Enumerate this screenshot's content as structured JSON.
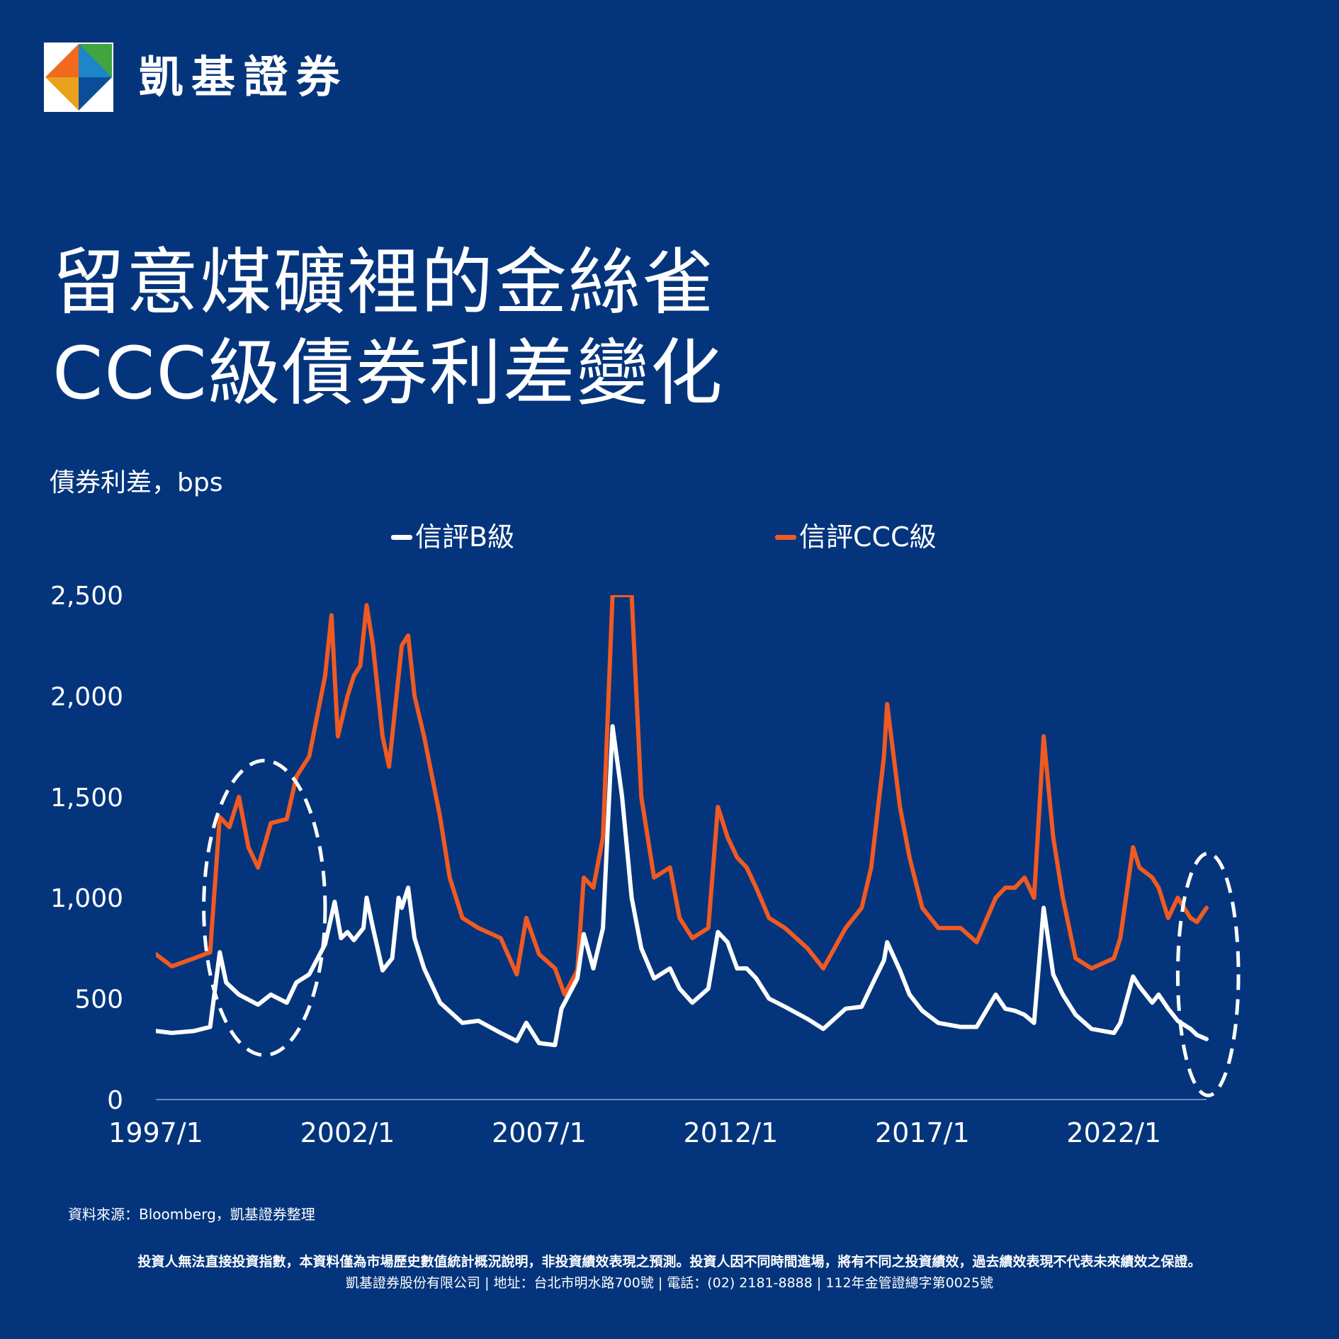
{
  "brand": {
    "name": "凱基證券"
  },
  "title": {
    "line1": "留意煤礦裡的金絲雀",
    "line2": "CCC級債券利差變化"
  },
  "chart_data": {
    "type": "line",
    "title": "留意煤礦裡的金絲雀 CCC級債券利差變化",
    "ylabel": "債券利差，bps",
    "xlabel": "",
    "ylim": [
      0,
      2500
    ],
    "y_ticks": [
      0,
      500,
      1000,
      1500,
      2000,
      2500
    ],
    "y_tick_labels": [
      "0",
      "500",
      "1,000",
      "1,500",
      "2,000",
      "2,500"
    ],
    "x_range": [
      "1997-01",
      "2024-06"
    ],
    "x_ticks": [
      "1997/1",
      "2002/1",
      "2007/1",
      "2012/1",
      "2017/1",
      "2022/1"
    ],
    "grid": false,
    "legend_position": "top",
    "series": [
      {
        "name": "信評B級",
        "color": "#ffffff",
        "points": [
          [
            "1997-01",
            340
          ],
          [
            "1997-06",
            330
          ],
          [
            "1998-01",
            340
          ],
          [
            "1998-06",
            360
          ],
          [
            "1998-09",
            730
          ],
          [
            "1998-11",
            580
          ],
          [
            "1999-03",
            520
          ],
          [
            "1999-09",
            470
          ],
          [
            "2000-01",
            520
          ],
          [
            "2000-06",
            480
          ],
          [
            "2000-09",
            580
          ],
          [
            "2001-01",
            620
          ],
          [
            "2001-06",
            770
          ],
          [
            "2001-09",
            980
          ],
          [
            "2001-11",
            800
          ],
          [
            "2002-01",
            830
          ],
          [
            "2002-03",
            790
          ],
          [
            "2002-06",
            850
          ],
          [
            "2002-07",
            1000
          ],
          [
            "2002-09",
            850
          ],
          [
            "2002-12",
            640
          ],
          [
            "2003-03",
            700
          ],
          [
            "2003-05",
            1000
          ],
          [
            "2003-06",
            950
          ],
          [
            "2003-08",
            1050
          ],
          [
            "2003-10",
            800
          ],
          [
            "2004-01",
            650
          ],
          [
            "2004-06",
            480
          ],
          [
            "2005-01",
            380
          ],
          [
            "2005-06",
            390
          ],
          [
            "2006-01",
            330
          ],
          [
            "2006-06",
            290
          ],
          [
            "2006-09",
            380
          ],
          [
            "2007-01",
            280
          ],
          [
            "2007-06",
            270
          ],
          [
            "2007-08",
            450
          ],
          [
            "2008-01",
            600
          ],
          [
            "2008-03",
            820
          ],
          [
            "2008-06",
            650
          ],
          [
            "2008-09",
            850
          ],
          [
            "2008-12",
            1850
          ],
          [
            "2009-03",
            1500
          ],
          [
            "2009-06",
            1000
          ],
          [
            "2009-09",
            750
          ],
          [
            "2010-01",
            600
          ],
          [
            "2010-06",
            650
          ],
          [
            "2010-09",
            550
          ],
          [
            "2011-01",
            480
          ],
          [
            "2011-06",
            550
          ],
          [
            "2011-09",
            830
          ],
          [
            "2011-12",
            780
          ],
          [
            "2012-03",
            650
          ],
          [
            "2012-06",
            650
          ],
          [
            "2012-09",
            600
          ],
          [
            "2013-01",
            500
          ],
          [
            "2013-06",
            460
          ],
          [
            "2014-01",
            400
          ],
          [
            "2014-06",
            350
          ],
          [
            "2015-01",
            450
          ],
          [
            "2015-06",
            460
          ],
          [
            "2015-09",
            560
          ],
          [
            "2016-01",
            690
          ],
          [
            "2016-02",
            780
          ],
          [
            "2016-06",
            640
          ],
          [
            "2016-09",
            520
          ],
          [
            "2017-01",
            440
          ],
          [
            "2017-06",
            380
          ],
          [
            "2018-01",
            360
          ],
          [
            "2018-06",
            360
          ],
          [
            "2018-12",
            520
          ],
          [
            "2019-03",
            450
          ],
          [
            "2019-06",
            440
          ],
          [
            "2019-09",
            420
          ],
          [
            "2019-12",
            380
          ],
          [
            "2020-03",
            950
          ],
          [
            "2020-06",
            620
          ],
          [
            "2020-09",
            520
          ],
          [
            "2021-01",
            420
          ],
          [
            "2021-06",
            350
          ],
          [
            "2022-01",
            330
          ],
          [
            "2022-03",
            380
          ],
          [
            "2022-07",
            610
          ],
          [
            "2022-09",
            560
          ],
          [
            "2023-01",
            480
          ],
          [
            "2023-03",
            520
          ],
          [
            "2023-06",
            450
          ],
          [
            "2023-09",
            390
          ],
          [
            "2024-01",
            350
          ],
          [
            "2024-03",
            320
          ],
          [
            "2024-06",
            300
          ]
        ]
      },
      {
        "name": "信評CCC級",
        "color": "#f05a22",
        "points": [
          [
            "1997-01",
            720
          ],
          [
            "1997-06",
            660
          ],
          [
            "1998-01",
            700
          ],
          [
            "1998-06",
            730
          ],
          [
            "1998-09",
            1400
          ],
          [
            "1998-12",
            1350
          ],
          [
            "1999-03",
            1500
          ],
          [
            "1999-06",
            1250
          ],
          [
            "1999-09",
            1150
          ],
          [
            "2000-01",
            1370
          ],
          [
            "2000-06",
            1390
          ],
          [
            "2000-09",
            1600
          ],
          [
            "2001-01",
            1700
          ],
          [
            "2001-06",
            2100
          ],
          [
            "2001-08",
            2400
          ],
          [
            "2001-10",
            1800
          ],
          [
            "2002-01",
            2000
          ],
          [
            "2002-03",
            2100
          ],
          [
            "2002-05",
            2150
          ],
          [
            "2002-07",
            2450
          ],
          [
            "2002-09",
            2250
          ],
          [
            "2002-12",
            1800
          ],
          [
            "2003-02",
            1650
          ],
          [
            "2003-06",
            2250
          ],
          [
            "2003-08",
            2300
          ],
          [
            "2003-10",
            2000
          ],
          [
            "2004-01",
            1800
          ],
          [
            "2004-06",
            1400
          ],
          [
            "2004-09",
            1100
          ],
          [
            "2005-01",
            900
          ],
          [
            "2005-06",
            850
          ],
          [
            "2006-01",
            800
          ],
          [
            "2006-06",
            620
          ],
          [
            "2006-09",
            900
          ],
          [
            "2007-01",
            720
          ],
          [
            "2007-06",
            650
          ],
          [
            "2007-09",
            520
          ],
          [
            "2008-01",
            640
          ],
          [
            "2008-03",
            1100
          ],
          [
            "2008-06",
            1050
          ],
          [
            "2008-09",
            1300
          ],
          [
            "2008-12",
            2500
          ],
          [
            "2009-06",
            2500
          ],
          [
            "2009-09",
            1500
          ],
          [
            "2010-01",
            1100
          ],
          [
            "2010-06",
            1150
          ],
          [
            "2010-09",
            900
          ],
          [
            "2011-01",
            800
          ],
          [
            "2011-06",
            850
          ],
          [
            "2011-09",
            1450
          ],
          [
            "2011-12",
            1300
          ],
          [
            "2012-03",
            1200
          ],
          [
            "2012-06",
            1150
          ],
          [
            "2012-09",
            1050
          ],
          [
            "2013-01",
            900
          ],
          [
            "2013-06",
            850
          ],
          [
            "2014-01",
            750
          ],
          [
            "2014-06",
            650
          ],
          [
            "2015-01",
            850
          ],
          [
            "2015-06",
            950
          ],
          [
            "2015-09",
            1150
          ],
          [
            "2016-01",
            1700
          ],
          [
            "2016-02",
            1960
          ],
          [
            "2016-06",
            1450
          ],
          [
            "2016-09",
            1200
          ],
          [
            "2017-01",
            950
          ],
          [
            "2017-06",
            850
          ],
          [
            "2018-01",
            850
          ],
          [
            "2018-06",
            780
          ],
          [
            "2018-12",
            1000
          ],
          [
            "2019-03",
            1050
          ],
          [
            "2019-06",
            1050
          ],
          [
            "2019-09",
            1100
          ],
          [
            "2019-12",
            1000
          ],
          [
            "2020-03",
            1800
          ],
          [
            "2020-06",
            1300
          ],
          [
            "2020-09",
            1000
          ],
          [
            "2021-01",
            700
          ],
          [
            "2021-06",
            650
          ],
          [
            "2022-01",
            700
          ],
          [
            "2022-03",
            800
          ],
          [
            "2022-07",
            1250
          ],
          [
            "2022-09",
            1150
          ],
          [
            "2023-01",
            1100
          ],
          [
            "2023-03",
            1050
          ],
          [
            "2023-06",
            900
          ],
          [
            "2023-09",
            1000
          ],
          [
            "2024-01",
            900
          ],
          [
            "2024-03",
            880
          ],
          [
            "2024-06",
            950
          ]
        ]
      }
    ],
    "annotations": [
      {
        "shape": "dashed-ellipse",
        "x_range": [
          "1998-04",
          "2001-06"
        ],
        "y_range": [
          220,
          1680
        ]
      },
      {
        "shape": "dashed-ellipse",
        "x_range": [
          "2023-09",
          "2025-04"
        ],
        "y_range": [
          20,
          1220
        ]
      }
    ]
  },
  "footer": {
    "source": "資料來源：Bloomberg，凱基證券整理",
    "disclaimer": "投資人無法直接投資指數，本資料僅為市場歷史數值統計概況說明，非投資績效表現之預測。投資人因不同時間進場，將有不同之投資績效，過去績效表現不代表未來績效之保證。",
    "company": "凱基證券股份有限公司 | 地址：台北市明水路700號 | 電話：(02) 2181-8888 | 112年金管證總字第0025號"
  }
}
